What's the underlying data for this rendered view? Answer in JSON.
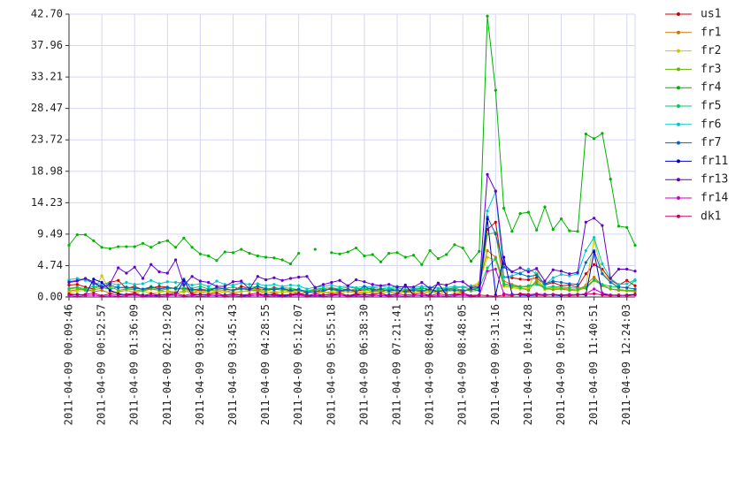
{
  "chart_data": {
    "type": "line",
    "categories": [
      "2011-04-09 00:09:46",
      null,
      null,
      null,
      "2011-04-09 00:52:57",
      null,
      null,
      null,
      "2011-04-09 01:36:09",
      null,
      null,
      null,
      "2011-04-09 02:19:20",
      null,
      null,
      null,
      "2011-04-09 03:02:32",
      null,
      null,
      null,
      "2011-04-09 03:45:43",
      null,
      null,
      null,
      "2011-04-09 04:28:55",
      null,
      null,
      null,
      "2011-04-09 05:12:07",
      null,
      null,
      null,
      "2011-04-09 05:55:18",
      null,
      null,
      null,
      "2011-04-09 06:38:30",
      null,
      null,
      null,
      "2011-04-09 07:21:41",
      null,
      null,
      null,
      "2011-04-09 08:04:53",
      null,
      null,
      null,
      "2011-04-09 08:48:05",
      null,
      null,
      null,
      "2011-04-09 09:31:16",
      null,
      null,
      null,
      "2011-04-09 10:14:28",
      null,
      null,
      null,
      "2011-04-09 10:57:39",
      null,
      null,
      null,
      "2011-04-09 11:40:51",
      null,
      null,
      null,
      "2011-04-09 12:24:03",
      null
    ],
    "ylim": [
      0,
      42.7
    ],
    "yticks": [
      {
        "value": 0,
        "label": "0.00"
      },
      4.74,
      9.49,
      14.23,
      18.98,
      23.72,
      28.47,
      33.21,
      37.96,
      {
        "value": 42.7,
        "label": "42.70"
      }
    ],
    "grid": true,
    "series": [
      {
        "name": "us1",
        "color": "#cc0000",
        "values": [
          1.8,
          1.9,
          1.5,
          1.2,
          1.9,
          2.2,
          2.5,
          1.3,
          1.6,
          1.1,
          1.4,
          1.6,
          1.5,
          1.2,
          1.3,
          1.1,
          1.0,
          0.9,
          1.4,
          1.2,
          1.0,
          1.6,
          1.3,
          1.2,
          1.1,
          1.4,
          1.2,
          0.9,
          1.1,
          0.6,
          1.2,
          0.8,
          1.4,
          1.0,
          1.2,
          0.9,
          1.1,
          1.3,
          0.8,
          1.2,
          1.0,
          0.9,
          1.1,
          1.4,
          1.0,
          0.8,
          1.2,
          1.3,
          1.0,
          1.1,
          1.4,
          10.2,
          11.3,
          3.0,
          2.9,
          2.7,
          2.6,
          2.9,
          1.8,
          2.2,
          1.7,
          1.8,
          1.5,
          3.5,
          4.9,
          4.2,
          2.6,
          1.8,
          2.5,
          1.7
        ]
      },
      {
        "name": "fr1",
        "color": "#c87800",
        "values": [
          0.9,
          1.1,
          1.2,
          0.8,
          1.0,
          0.6,
          0.8,
          1.0,
          0.7,
          0.9,
          1.2,
          1.0,
          0.8,
          0.6,
          0.9,
          0.7,
          0.8,
          0.6,
          0.9,
          1.0,
          0.7,
          0.8,
          1.0,
          0.9,
          0.6,
          0.8,
          0.7,
          0.9,
          0.5,
          0.6,
          0.8,
          0.7,
          0.6,
          0.9,
          0.8,
          0.7,
          0.6,
          0.8,
          0.9,
          0.7,
          0.6,
          0.8,
          0.7,
          0.9,
          0.6,
          0.8,
          0.7,
          1.4,
          0.6,
          1.5,
          1.9,
          7.0,
          6.0,
          2.4,
          1.9,
          1.6,
          1.5,
          2.2,
          1.2,
          1.4,
          1.3,
          1.2,
          1.0,
          1.8,
          3.0,
          1.7,
          1.2,
          1.0,
          0.9,
          0.8
        ]
      },
      {
        "name": "fr2",
        "color": "#c8c800",
        "values": [
          0.7,
          0.9,
          1.0,
          0.8,
          3.2,
          0.9,
          0.7,
          1.0,
          0.8,
          0.9,
          0.6,
          0.7,
          0.9,
          0.8,
          0.7,
          1.1,
          0.7,
          0.6,
          0.8,
          0.7,
          0.6,
          0.9,
          0.8,
          1.6,
          0.7,
          0.6,
          0.8,
          0.7,
          0.9,
          0.8,
          0.6,
          0.7,
          0.8,
          0.6,
          0.9,
          0.7,
          0.8,
          0.6,
          0.7,
          0.8,
          0.9,
          0.6,
          0.7,
          0.8,
          0.6,
          0.7,
          0.9,
          0.8,
          0.7,
          1.6,
          2.2,
          6.0,
          5.6,
          1.6,
          1.4,
          1.2,
          1.3,
          4.2,
          1.1,
          1.3,
          1.2,
          1.1,
          0.9,
          1.6,
          8.6,
          3.6,
          2.5,
          1.2,
          0.9,
          1.0
        ]
      },
      {
        "name": "fr3",
        "color": "#64b400",
        "values": [
          1.2,
          1.4,
          1.0,
          1.1,
          1.3,
          1.6,
          1.0,
          1.2,
          1.1,
          0.9,
          1.3,
          1.0,
          1.2,
          1.4,
          1.1,
          1.0,
          1.2,
          0.9,
          1.1,
          1.3,
          1.0,
          1.2,
          1.1,
          1.0,
          0.9,
          1.2,
          1.0,
          1.1,
          0.9,
          0.8,
          1.0,
          1.2,
          1.1,
          0.9,
          1.0,
          1.2,
          1.1,
          0.9,
          1.0,
          1.1,
          0.9,
          1.0,
          1.2,
          1.0,
          0.9,
          1.1,
          1.0,
          1.2,
          1.1,
          0.9,
          1.0,
          9.5,
          9.7,
          1.8,
          1.6,
          1.4,
          1.0,
          2.6,
          1.3,
          1.1,
          1.2,
          1.0,
          1.1,
          1.3,
          2.5,
          1.8,
          1.2,
          1.1,
          1.0,
          1.0
        ]
      },
      {
        "name": "fr4",
        "color": "#00b400",
        "values": [
          7.8,
          9.4,
          9.4,
          8.5,
          7.5,
          7.3,
          7.6,
          7.6,
          7.6,
          8.1,
          7.5,
          8.2,
          8.5,
          7.5,
          8.9,
          7.5,
          6.5,
          6.2,
          5.5,
          6.8,
          6.7,
          7.2,
          6.6,
          6.2,
          6.0,
          5.9,
          5.6,
          5.0,
          6.6,
          null,
          7.2,
          null,
          6.7,
          6.5,
          6.8,
          7.4,
          6.2,
          6.4,
          5.3,
          6.6,
          6.7,
          6.0,
          6.3,
          4.9,
          7.0,
          5.8,
          6.4,
          7.9,
          7.4,
          5.4,
          6.9,
          42.4,
          31.2,
          13.4,
          9.9,
          12.6,
          12.8,
          10.1,
          13.6,
          10.2,
          11.8,
          10.0,
          9.9,
          24.6,
          23.9,
          24.7,
          17.8,
          10.7,
          10.5,
          7.8
        ]
      },
      {
        "name": "fr5",
        "color": "#00c864",
        "values": [
          1.3,
          1.5,
          1.2,
          1.6,
          1.4,
          1.2,
          1.5,
          1.3,
          1.4,
          1.1,
          1.6,
          1.3,
          1.5,
          1.2,
          1.4,
          1.3,
          1.6,
          1.2,
          1.4,
          1.3,
          1.5,
          1.2,
          1.4,
          1.6,
          1.3,
          1.2,
          1.4,
          1.3,
          1.1,
          0.9,
          1.2,
          1.3,
          1.4,
          1.2,
          1.5,
          1.3,
          1.2,
          1.4,
          1.3,
          1.2,
          1.4,
          1.1,
          1.3,
          1.2,
          1.4,
          1.3,
          1.2,
          1.4,
          1.5,
          1.2,
          1.3,
          4.4,
          5.8,
          2.0,
          1.8,
          1.5,
          1.7,
          1.9,
          1.4,
          1.6,
          1.5,
          1.4,
          1.3,
          1.5,
          2.6,
          1.9,
          1.6,
          1.5,
          1.4,
          2.5
        ]
      },
      {
        "name": "fr6",
        "color": "#00c8c8",
        "values": [
          2.6,
          2.8,
          2.5,
          2.2,
          1.9,
          2.1,
          1.8,
          2.2,
          1.9,
          2.0,
          2.5,
          2.0,
          2.3,
          2.2,
          2.1,
          1.8,
          2.0,
          1.6,
          2.4,
          1.9,
          1.8,
          2.1,
          1.9,
          2.0,
          1.7,
          1.9,
          1.6,
          1.8,
          1.7,
          1.2,
          1.5,
          1.6,
          1.8,
          1.5,
          1.7,
          1.4,
          1.6,
          1.5,
          1.7,
          1.4,
          1.6,
          1.5,
          1.4,
          1.6,
          1.5,
          1.3,
          1.4,
          1.6,
          1.5,
          1.7,
          1.5,
          13.0,
          15.9,
          3.0,
          3.2,
          3.6,
          4.2,
          3.5,
          1.8,
          2.9,
          3.4,
          3.2,
          3.5,
          7.0,
          9.0,
          5.0,
          2.8,
          1.9,
          2.0,
          2.6
        ]
      },
      {
        "name": "fr7",
        "color": "#0064c8",
        "values": [
          2.3,
          2.5,
          2.8,
          2.0,
          1.6,
          1.8,
          1.4,
          1.5,
          1.3,
          1.2,
          1.5,
          1.2,
          1.4,
          1.3,
          2.7,
          1.1,
          1.2,
          1.0,
          1.4,
          1.2,
          1.0,
          1.3,
          1.1,
          1.6,
          1.2,
          1.1,
          1.3,
          1.0,
          1.2,
          0.7,
          0.8,
          1.0,
          1.2,
          0.9,
          1.1,
          0.8,
          1.6,
          1.0,
          1.2,
          0.9,
          1.1,
          0.8,
          1.0,
          0.9,
          1.2,
          0.8,
          1.1,
          1.0,
          0.9,
          1.2,
          1.0,
          12.1,
          9.5,
          4.5,
          3.8,
          3.5,
          3.1,
          3.3,
          2.0,
          2.4,
          2.2,
          2.0,
          1.9,
          5.2,
          7.0,
          3.5,
          2.2,
          1.5,
          1.4,
          1.2
        ]
      },
      {
        "name": "fr11",
        "color": "#0000c8",
        "values": [
          0.3,
          0.4,
          0.3,
          2.7,
          2.2,
          1.0,
          0.5,
          0.3,
          0.4,
          0.3,
          0.2,
          0.3,
          0.4,
          0.3,
          2.5,
          0.3,
          0.4,
          0.3,
          0.2,
          0.3,
          0.4,
          0.3,
          0.2,
          0.3,
          0.4,
          0.3,
          0.2,
          0.3,
          0.4,
          0.3,
          0.2,
          0.3,
          0.4,
          0.3,
          0.2,
          0.3,
          0.4,
          0.3,
          0.2,
          0.3,
          0.4,
          1.8,
          0.3,
          0.2,
          0.3,
          2.1,
          0.3,
          0.4,
          0.3,
          0.2,
          0.3,
          11.8,
          0.3,
          6.0,
          0.4,
          0.3,
          0.2,
          0.3,
          0.4,
          0.3,
          0.2,
          0.3,
          0.4,
          0.3,
          6.8,
          0.4,
          0.3,
          0.2,
          0.3,
          0.4
        ]
      },
      {
        "name": "fr13",
        "color": "#6400c8",
        "values": [
          2.2,
          2.4,
          2.8,
          2.3,
          1.4,
          2.0,
          4.4,
          3.6,
          4.5,
          2.8,
          4.9,
          3.8,
          3.6,
          5.6,
          1.8,
          3.1,
          2.4,
          2.2,
          1.6,
          1.6,
          2.3,
          2.4,
          1.2,
          3.1,
          2.6,
          2.9,
          2.5,
          2.8,
          3.0,
          3.1,
          1.4,
          1.9,
          2.2,
          2.5,
          1.7,
          2.6,
          2.3,
          1.9,
          1.7,
          1.9,
          1.5,
          1.6,
          1.5,
          2.2,
          1.3,
          2.0,
          1.8,
          2.3,
          2.3,
          1.4,
          1.5,
          18.5,
          16.0,
          5.0,
          3.8,
          4.4,
          3.8,
          4.3,
          2.4,
          4.1,
          3.9,
          3.5,
          3.7,
          11.3,
          11.9,
          10.8,
          2.8,
          4.2,
          4.2,
          3.9
        ]
      },
      {
        "name": "fr14",
        "color": "#c800c8",
        "values": [
          0.2,
          0.1,
          0.2,
          0.3,
          0.1,
          0.2,
          0.1,
          0.2,
          0.3,
          0.1,
          0.2,
          0.1,
          0.2,
          0.3,
          0.1,
          0.2,
          0.1,
          0.2,
          0.3,
          0.1,
          0.2,
          0.1,
          0.2,
          0.3,
          0.1,
          0.2,
          0.1,
          0.2,
          0.3,
          0.1,
          0.2,
          0.1,
          0.2,
          0.3,
          0.1,
          0.2,
          0.1,
          0.2,
          0.3,
          0.1,
          0.2,
          0.1,
          0.2,
          0.3,
          0.1,
          0.2,
          0.1,
          0.2,
          0.3,
          0.1,
          0.2,
          3.9,
          4.2,
          0.5,
          0.3,
          0.4,
          0.3,
          0.5,
          0.3,
          0.4,
          0.3,
          0.4,
          0.3,
          0.5,
          1.2,
          0.6,
          0.3,
          0.3,
          0.2,
          0.3
        ]
      },
      {
        "name": "dk1",
        "color": "#c80064",
        "values": [
          0.5,
          0.3,
          0.4,
          0.6,
          0.2,
          0.5,
          0.3,
          0.4,
          0.6,
          0.2,
          0.5,
          0.3,
          0.4,
          0.6,
          0.2,
          0.5,
          0.3,
          0.4,
          0.6,
          0.2,
          0.5,
          0.3,
          0.4,
          0.6,
          0.2,
          0.5,
          0.3,
          0.4,
          0.6,
          0.2,
          0.5,
          0.3,
          0.4,
          0.6,
          0.2,
          0.5,
          0.3,
          0.4,
          0.6,
          0.2,
          0.5,
          0.3,
          0.4,
          0.6,
          0.2,
          0.5,
          0.3,
          0.4,
          0.6,
          0.2,
          0.3,
          0.2,
          0.1,
          0.3,
          0.2,
          0.5,
          0.4,
          0.3,
          0.2,
          0.4,
          0.3,
          0.2,
          0.3,
          0.4,
          0.5,
          0.3,
          0.2,
          0.3,
          0.2,
          0.3
        ]
      }
    ]
  }
}
